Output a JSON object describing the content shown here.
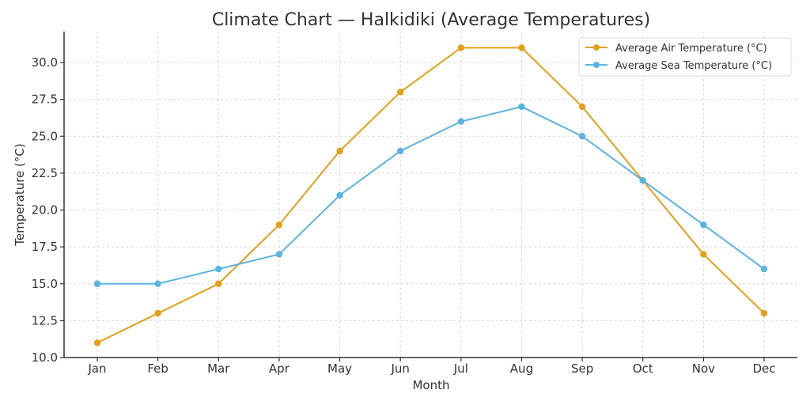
{
  "chart_data": {
    "type": "line",
    "title": "Climate Chart — Halkidiki (Average Temperatures)",
    "xlabel": "Month",
    "ylabel": "Temperature (°C)",
    "categories": [
      "Jan",
      "Feb",
      "Mar",
      "Apr",
      "May",
      "Jun",
      "Jul",
      "Aug",
      "Sep",
      "Oct",
      "Nov",
      "Dec"
    ],
    "ylim": [
      10,
      32
    ],
    "yticks": [
      10.0,
      12.5,
      15.0,
      17.5,
      20.0,
      22.5,
      25.0,
      27.5,
      30.0
    ],
    "ytick_labels": [
      "10.0",
      "12.5",
      "15.0",
      "17.5",
      "20.0",
      "22.5",
      "25.0",
      "27.5",
      "30.0"
    ],
    "grid": true,
    "legend_position": "top-right",
    "series": [
      {
        "name": "Average Air Temperature (°C)",
        "color": "#E3A018",
        "marker": "circle",
        "values": [
          11,
          13,
          15,
          19,
          24,
          28,
          31,
          31,
          27,
          22,
          17,
          13
        ]
      },
      {
        "name": "Average Sea Temperature (°C)",
        "color": "#5AB4E0",
        "marker": "circle",
        "values": [
          15,
          15,
          16,
          17,
          21,
          24,
          26,
          27,
          25,
          22,
          19,
          16
        ]
      }
    ]
  }
}
